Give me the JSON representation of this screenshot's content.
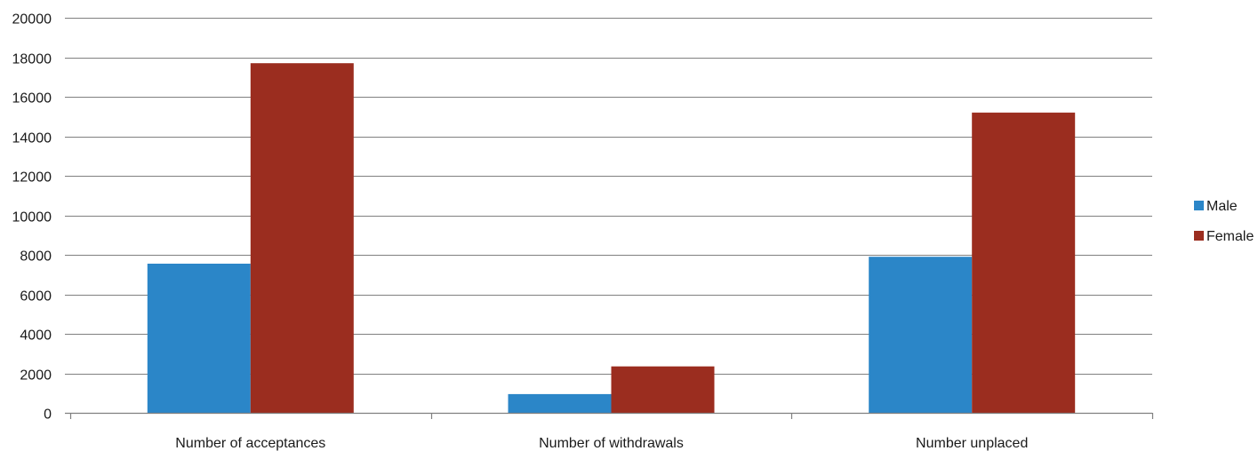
{
  "chart_data": {
    "type": "bar",
    "title": "",
    "xlabel": "",
    "ylabel": "",
    "categories": [
      "Number of acceptances",
      "Number of withdrawals",
      "Number unplaced"
    ],
    "series": [
      {
        "name": "Male",
        "color": "#2b86c8",
        "values": [
          7550,
          950,
          7900
        ]
      },
      {
        "name": "Female",
        "color": "#9b2d1f",
        "values": [
          17700,
          2350,
          15200
        ]
      }
    ],
    "ylim": [
      0,
      20000
    ],
    "yticks": [
      0,
      2000,
      4000,
      6000,
      8000,
      10000,
      12000,
      14000,
      16000,
      18000,
      20000
    ],
    "grid": true,
    "legend_position": "right"
  }
}
